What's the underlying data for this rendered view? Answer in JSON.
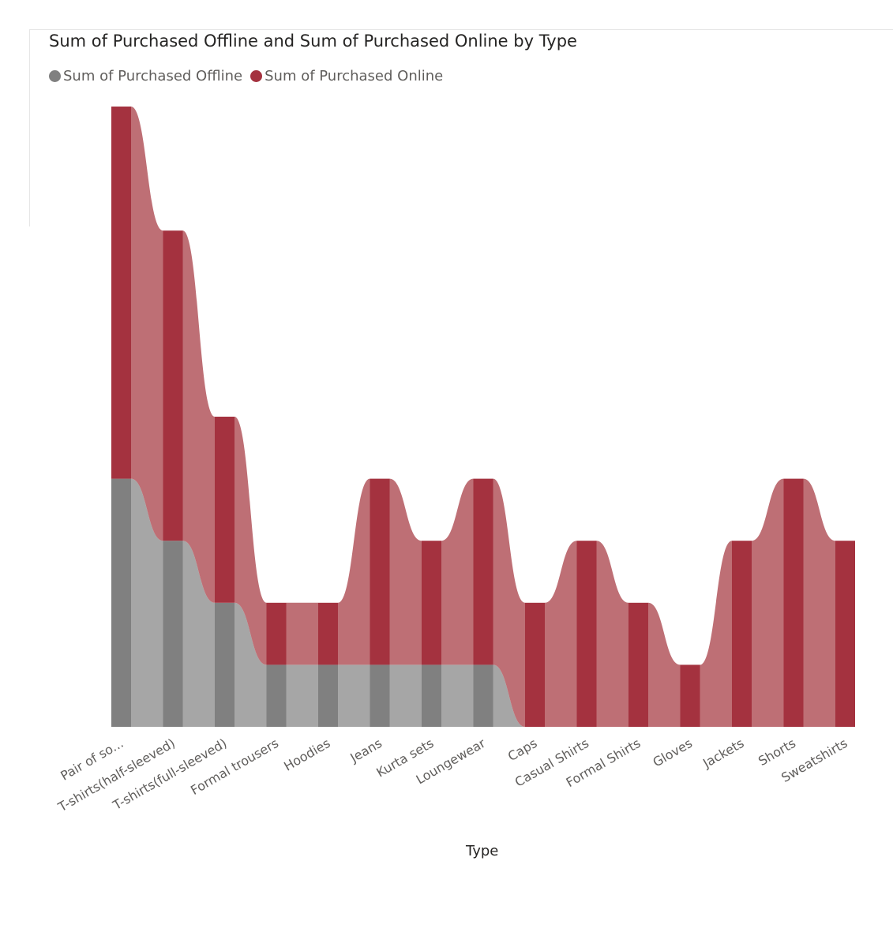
{
  "chart_data": {
    "type": "ribbon",
    "title": "Sum of Purchased Offline and Sum of Purchased Online by Type",
    "xlabel": "Type",
    "ylabel": "",
    "categories": [
      "Pair of so...",
      "T-shirts(half-sleeved)",
      "T-shirts(full-sleeved)",
      "Formal trousers",
      "Hoodies",
      "Jeans",
      "Kurta sets",
      "Loungewear",
      "Caps",
      "Casual Shirts",
      "Formal Shirts",
      "Gloves",
      "Jackets",
      "Shorts",
      "Sweatshirts"
    ],
    "series": [
      {
        "name": "Sum of Purchased Offline",
        "color": "#808080",
        "ribbon_color": "#a6a6a6",
        "values": [
          4,
          3,
          2,
          1,
          1,
          1,
          1,
          1,
          0,
          0,
          0,
          0,
          0,
          0,
          0
        ]
      },
      {
        "name": "Sum of Purchased Online",
        "color": "#a4323f",
        "ribbon_color": "#be6f75",
        "values": [
          6,
          5,
          3,
          1,
          1,
          3,
          2,
          3,
          2,
          3,
          2,
          1,
          3,
          4,
          3
        ]
      }
    ],
    "ylim": [
      0,
      10
    ],
    "grid": false,
    "legend": "top-left"
  }
}
